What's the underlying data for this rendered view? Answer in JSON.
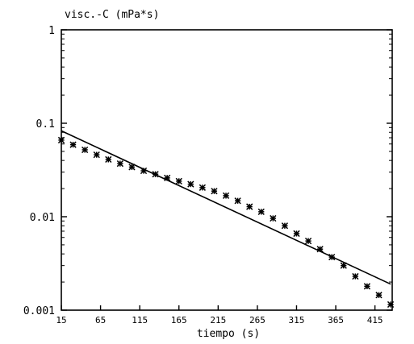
{
  "chart_data": {
    "type": "scatter",
    "ylabel": "visc.-C (mPa*s)",
    "xlabel": "tiempo (s)",
    "x_ticks": [
      15,
      65,
      115,
      165,
      215,
      265,
      315,
      365,
      415
    ],
    "x_tick_labels": [
      "15",
      "65",
      "115",
      "165",
      "215",
      "265",
      "315",
      "365",
      "415"
    ],
    "y_ticks": [
      0.001,
      0.01,
      0.1,
      1
    ],
    "y_tick_labels": [
      "0.001",
      "0.01",
      "0.1",
      "1"
    ],
    "y_scale": "log",
    "xlim": [
      15,
      437
    ],
    "ylim": [
      0.001,
      1
    ],
    "grid": false,
    "series": [
      {
        "kind": "scatter",
        "marker": "asterisk",
        "x": [
          15,
          30,
          45,
          60,
          75,
          90,
          105,
          120,
          135,
          150,
          165,
          180,
          195,
          210,
          225,
          240,
          255,
          270,
          285,
          300,
          315,
          330,
          345,
          360,
          375,
          390,
          405,
          420,
          435
        ],
        "y": [
          0.066,
          0.059,
          0.052,
          0.046,
          0.041,
          0.037,
          0.034,
          0.031,
          0.0285,
          0.026,
          0.024,
          0.0223,
          0.0205,
          0.0188,
          0.0168,
          0.0148,
          0.0128,
          0.0113,
          0.0096,
          0.008,
          0.0066,
          0.0055,
          0.0045,
          0.0037,
          0.003,
          0.0023,
          0.0018,
          0.00145,
          0.00115
        ]
      },
      {
        "kind": "line",
        "x": [
          15,
          435
        ],
        "y": [
          0.083,
          0.0019
        ]
      }
    ]
  }
}
